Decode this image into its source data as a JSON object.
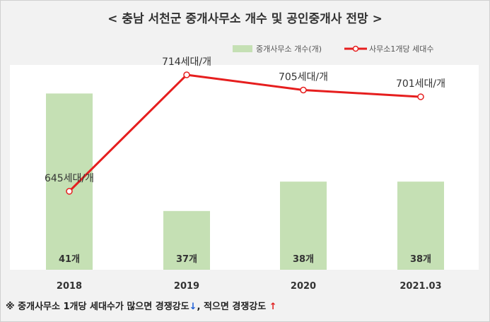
{
  "title": "< 충남 서천군 중개사무소 개수 및 공인중개사 전망 >",
  "footnote": {
    "prefix": "※ 중개사무소 1개당 세대수가 많으면 경쟁강도",
    "down_arrow": "↓",
    "middle": ", 적으면 경쟁강도",
    "up_arrow": "↑"
  },
  "colors": {
    "bar": "#c5e0b4",
    "line": "#e61e1e",
    "background": "#f2f2f2",
    "plot_area": "#ffffff"
  },
  "chart_data": {
    "type": "bar",
    "categories": [
      "2018",
      "2019",
      "2020",
      "2021.03"
    ],
    "legend_position": "top-right",
    "grid": false,
    "series": [
      {
        "name": "중개사무소 개수(개)",
        "type": "bar",
        "values": [
          41,
          37,
          38,
          38
        ],
        "labels": [
          "41개",
          "37개",
          "38개",
          "38개"
        ]
      },
      {
        "name": "사무소1개당 세대수",
        "type": "line",
        "values": [
          645,
          714,
          705,
          701
        ],
        "labels": [
          "645세대/개",
          "714세대/개",
          "705세대/개",
          "701세대/개"
        ]
      }
    ]
  }
}
